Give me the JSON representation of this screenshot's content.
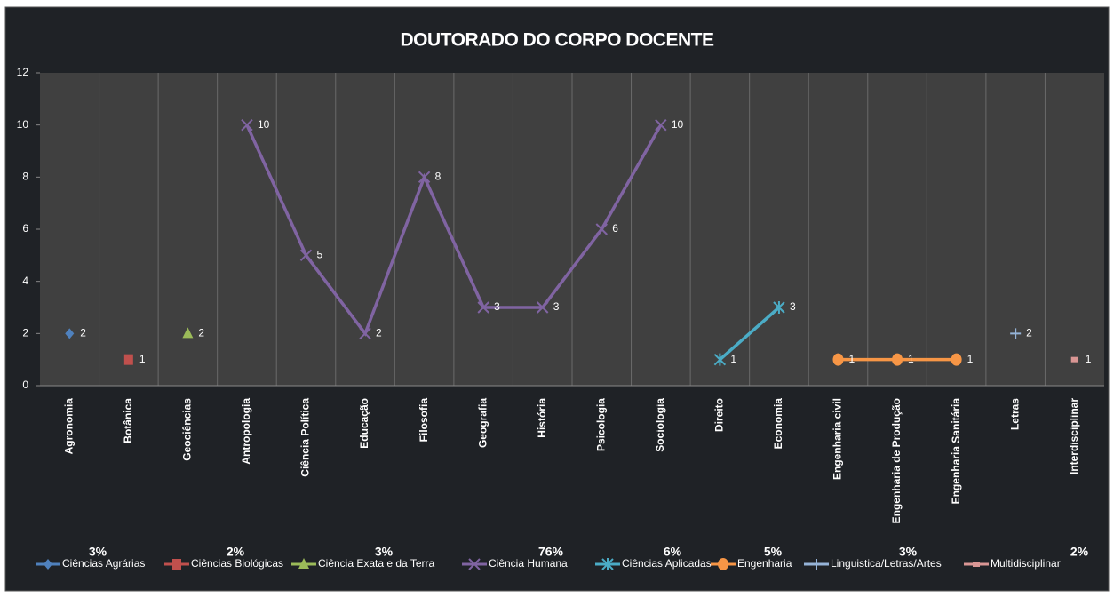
{
  "chart_data": {
    "type": "line",
    "title": "DOUTORADO DO CORPO DOCENTE",
    "categories": [
      "Agronomia",
      "Botânica",
      "Geociências",
      "Antropologia",
      "Ciência Política",
      "Educação",
      "Filosofia",
      "Geografia",
      "História",
      "Psicologia",
      "Sociologia",
      "Direito",
      "Economia",
      "Engenharia civil",
      "Engenharia de Produção",
      "Engenharia Sanitária",
      "Letras",
      "Interdisciplinar"
    ],
    "ylim": [
      0,
      12
    ],
    "yticks": [
      0,
      2,
      4,
      6,
      8,
      10,
      12
    ],
    "grid": true,
    "legend": "bottom",
    "legend_percentages": [
      "3%",
      "2%",
      "3%",
      "76%",
      "6%",
      "5%",
      "3%",
      "2%"
    ],
    "series": [
      {
        "name": "Ciências Agrárias",
        "color": "#4f81bd",
        "marker": "diamond",
        "values": [
          2,
          null,
          null,
          null,
          null,
          null,
          null,
          null,
          null,
          null,
          null,
          null,
          null,
          null,
          null,
          null,
          null,
          null
        ]
      },
      {
        "name": "Ciências Biológicas",
        "color": "#c0504d",
        "marker": "square",
        "values": [
          null,
          1,
          null,
          null,
          null,
          null,
          null,
          null,
          null,
          null,
          null,
          null,
          null,
          null,
          null,
          null,
          null,
          null
        ]
      },
      {
        "name": "Ciência Exata e da Terra",
        "color": "#9bbb59",
        "marker": "triangle",
        "values": [
          null,
          null,
          2,
          null,
          null,
          null,
          null,
          null,
          null,
          null,
          null,
          null,
          null,
          null,
          null,
          null,
          null,
          null
        ]
      },
      {
        "name": "Ciência Humana",
        "color": "#8064a2",
        "marker": "x",
        "values": [
          null,
          null,
          null,
          10,
          5,
          2,
          8,
          3,
          3,
          6,
          10,
          null,
          null,
          null,
          null,
          null,
          null,
          null
        ]
      },
      {
        "name": "Ciências Aplicadas",
        "color": "#4bacc6",
        "marker": "star",
        "values": [
          null,
          null,
          null,
          null,
          null,
          null,
          null,
          null,
          null,
          null,
          null,
          1,
          3,
          null,
          null,
          null,
          null,
          null
        ]
      },
      {
        "name": "Engenharia",
        "color": "#f79646",
        "marker": "circle",
        "values": [
          null,
          null,
          null,
          null,
          null,
          null,
          null,
          null,
          null,
          null,
          null,
          null,
          null,
          1,
          1,
          1,
          null,
          null
        ]
      },
      {
        "name": "Linguistica/Letras/Artes",
        "color": "#95b3d7",
        "marker": "plus",
        "values": [
          null,
          null,
          null,
          null,
          null,
          null,
          null,
          null,
          null,
          null,
          null,
          null,
          null,
          null,
          null,
          null,
          2,
          null
        ]
      },
      {
        "name": "Multidisciplinar",
        "color": "#d99694",
        "marker": "dash",
        "values": [
          null,
          null,
          null,
          null,
          null,
          null,
          null,
          null,
          null,
          null,
          null,
          null,
          null,
          null,
          null,
          null,
          null,
          1
        ]
      }
    ]
  }
}
